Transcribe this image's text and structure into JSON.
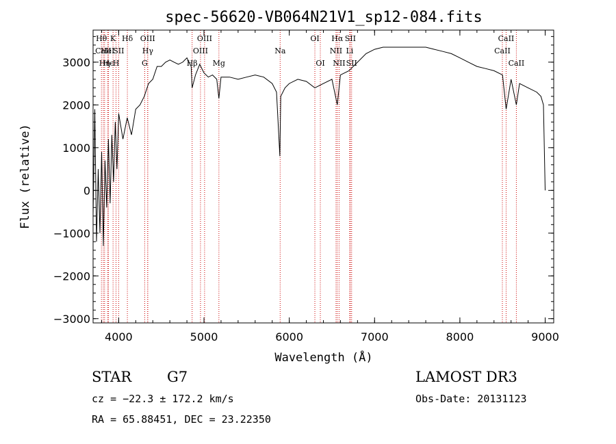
{
  "chart_data": {
    "type": "line",
    "title": "spec-56620-VB064N21V1_sp12-084.fits",
    "xlabel": "Wavelength (Å)",
    "ylabel": "Flux (relative)",
    "xlim": [
      3700,
      9100
    ],
    "ylim": [
      -3100,
      3750
    ],
    "xticks": [
      4000,
      5000,
      6000,
      7000,
      8000,
      9000
    ],
    "yticks": [
      -3000,
      -2000,
      -1000,
      0,
      1000,
      2000,
      3000
    ],
    "series": [
      {
        "name": "flux",
        "x": [
          3700,
          3720,
          3740,
          3760,
          3780,
          3800,
          3820,
          3840,
          3860,
          3880,
          3900,
          3920,
          3940,
          3960,
          3980,
          4000,
          4050,
          4100,
          4150,
          4200,
          4250,
          4300,
          4350,
          4400,
          4450,
          4500,
          4550,
          4600,
          4650,
          4700,
          4750,
          4800,
          4850,
          4861,
          4900,
          4950,
          5000,
          5050,
          5100,
          5150,
          5175,
          5200,
          5300,
          5400,
          5500,
          5600,
          5700,
          5800,
          5850,
          5890,
          5900,
          5950,
          6000,
          6100,
          6200,
          6300,
          6400,
          6500,
          6563,
          6600,
          6700,
          6800,
          6900,
          7000,
          7100,
          7200,
          7300,
          7400,
          7500,
          7600,
          7700,
          7800,
          7900,
          8000,
          8100,
          8200,
          8300,
          8400,
          8500,
          8542,
          8600,
          8662,
          8700,
          8800,
          8900,
          8950,
          8980,
          9000
        ],
        "values": [
          -600,
          1900,
          -1200,
          500,
          -1000,
          900,
          -1300,
          700,
          -400,
          1200,
          -300,
          1300,
          200,
          1600,
          500,
          1800,
          1200,
          1700,
          1300,
          1900,
          2000,
          2200,
          2500,
          2600,
          2900,
          2900,
          3000,
          3050,
          3000,
          2950,
          3000,
          3100,
          2900,
          2400,
          2700,
          2950,
          2750,
          2650,
          2700,
          2600,
          2150,
          2650,
          2650,
          2600,
          2650,
          2700,
          2650,
          2500,
          2300,
          800,
          2200,
          2400,
          2500,
          2600,
          2550,
          2400,
          2500,
          2600,
          2000,
          2700,
          2800,
          3000,
          3200,
          3300,
          3350,
          3350,
          3350,
          3350,
          3350,
          3350,
          3300,
          3250,
          3200,
          3100,
          3000,
          2900,
          2850,
          2800,
          2700,
          1900,
          2600,
          2000,
          2500,
          2400,
          2300,
          2200,
          2000,
          0
        ]
      }
    ],
    "emission_lines": [
      {
        "label": "Hθ",
        "wave": 3798,
        "row": 1
      },
      {
        "label": "CaII",
        "wave": 3820,
        "row": 2
      },
      {
        "label": "Hη",
        "wave": 3835,
        "row": 3
      },
      {
        "label": "HeI",
        "wave": 3870,
        "row": 2
      },
      {
        "label": "Hϵ",
        "wave": 3880,
        "row": 3
      },
      {
        "label": "K",
        "wave": 3934,
        "row": 1
      },
      {
        "label": "H",
        "wave": 3969,
        "row": 3
      },
      {
        "label": "SII",
        "wave": 4000,
        "row": 2
      },
      {
        "label": "Hδ",
        "wave": 4102,
        "row": 1
      },
      {
        "label": "OIII",
        "wave": 4340,
        "row": 1
      },
      {
        "label": "Hγ",
        "wave": 4341,
        "row": 2
      },
      {
        "label": "G",
        "wave": 4305,
        "row": 3
      },
      {
        "label": "Hβ",
        "wave": 4861,
        "row": 3
      },
      {
        "label": "OIII",
        "wave": 5007,
        "row": 1
      },
      {
        "label": "OIII",
        "wave": 4959,
        "row": 2
      },
      {
        "label": "Mg",
        "wave": 5175,
        "row": 3
      },
      {
        "label": "Na",
        "wave": 5893,
        "row": 2
      },
      {
        "label": "OI",
        "wave": 6300,
        "row": 1
      },
      {
        "label": "OI",
        "wave": 6364,
        "row": 3
      },
      {
        "label": "Hα",
        "wave": 6563,
        "row": 1
      },
      {
        "label": "NII",
        "wave": 6548,
        "row": 2
      },
      {
        "label": "NII",
        "wave": 6584,
        "row": 3
      },
      {
        "label": "SII",
        "wave": 6716,
        "row": 1
      },
      {
        "label": "Li",
        "wave": 6708,
        "row": 2
      },
      {
        "label": "SII",
        "wave": 6731,
        "row": 3
      },
      {
        "label": "CaII",
        "wave": 8542,
        "row": 1
      },
      {
        "label": "CaII",
        "wave": 8498,
        "row": 2
      },
      {
        "label": "CaII",
        "wave": 8662,
        "row": 3
      }
    ],
    "grid": false,
    "legend": "none"
  },
  "info": {
    "class": "STAR",
    "subclass": "G7",
    "survey": "LAMOST DR3",
    "cz": "cz = −22.3 ± 172.2 km/s",
    "obs_date": "Obs-Date: 20131123",
    "coords": "RA =  65.88451, DEC =  23.22350"
  },
  "colors": {
    "spectrum": "#000000",
    "line_marker": "#cc0000",
    "axes": "#000000",
    "background": "#ffffff"
  }
}
